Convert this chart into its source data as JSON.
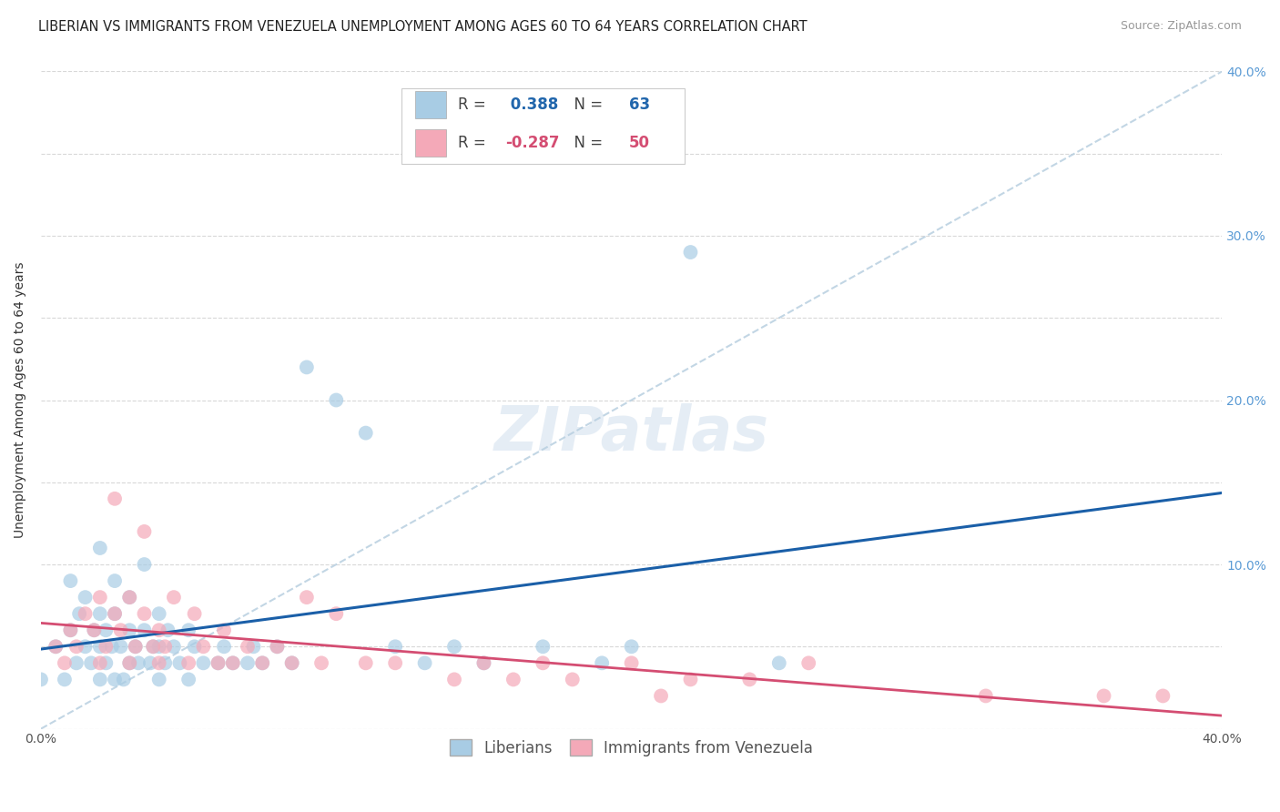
{
  "title": "LIBERIAN VS IMMIGRANTS FROM VENEZUELA UNEMPLOYMENT AMONG AGES 60 TO 64 YEARS CORRELATION CHART",
  "source": "Source: ZipAtlas.com",
  "ylabel": "Unemployment Among Ages 60 to 64 years",
  "xlim": [
    0.0,
    0.4
  ],
  "ylim": [
    0.0,
    0.4
  ],
  "xticks": [
    0.0,
    0.05,
    0.1,
    0.15,
    0.2,
    0.25,
    0.3,
    0.35,
    0.4
  ],
  "yticks": [
    0.0,
    0.05,
    0.1,
    0.15,
    0.2,
    0.25,
    0.3,
    0.35,
    0.4
  ],
  "liberian_color": "#a8cce4",
  "venezuela_color": "#f4a9b8",
  "liberian_R": 0.388,
  "liberian_N": 63,
  "venezuela_R": -0.287,
  "venezuela_N": 50,
  "liberian_line_color": "#1a5fa8",
  "venezuela_line_color": "#d44d72",
  "trend_line_color": "#b8cfe0",
  "background_color": "#ffffff",
  "grid_color": "#d8d8d8",
  "title_fontsize": 10.5,
  "axis_label_fontsize": 10,
  "tick_fontsize": 10,
  "watermark": "ZIPatlas",
  "liberian_scatter_x": [
    0.0,
    0.005,
    0.008,
    0.01,
    0.01,
    0.012,
    0.013,
    0.015,
    0.015,
    0.017,
    0.018,
    0.02,
    0.02,
    0.02,
    0.02,
    0.022,
    0.022,
    0.024,
    0.025,
    0.025,
    0.025,
    0.027,
    0.028,
    0.03,
    0.03,
    0.03,
    0.032,
    0.033,
    0.035,
    0.035,
    0.037,
    0.038,
    0.04,
    0.04,
    0.04,
    0.042,
    0.043,
    0.045,
    0.047,
    0.05,
    0.05,
    0.052,
    0.055,
    0.06,
    0.062,
    0.065,
    0.07,
    0.072,
    0.075,
    0.08,
    0.085,
    0.09,
    0.1,
    0.11,
    0.12,
    0.13,
    0.14,
    0.15,
    0.17,
    0.19,
    0.2,
    0.22,
    0.25
  ],
  "liberian_scatter_y": [
    0.03,
    0.05,
    0.03,
    0.06,
    0.09,
    0.04,
    0.07,
    0.05,
    0.08,
    0.04,
    0.06,
    0.03,
    0.05,
    0.07,
    0.11,
    0.04,
    0.06,
    0.05,
    0.03,
    0.07,
    0.09,
    0.05,
    0.03,
    0.04,
    0.06,
    0.08,
    0.05,
    0.04,
    0.06,
    0.1,
    0.04,
    0.05,
    0.03,
    0.05,
    0.07,
    0.04,
    0.06,
    0.05,
    0.04,
    0.03,
    0.06,
    0.05,
    0.04,
    0.04,
    0.05,
    0.04,
    0.04,
    0.05,
    0.04,
    0.05,
    0.04,
    0.22,
    0.2,
    0.18,
    0.05,
    0.04,
    0.05,
    0.04,
    0.05,
    0.04,
    0.05,
    0.29,
    0.04
  ],
  "venezuela_scatter_x": [
    0.005,
    0.008,
    0.01,
    0.012,
    0.015,
    0.018,
    0.02,
    0.02,
    0.022,
    0.025,
    0.025,
    0.027,
    0.03,
    0.03,
    0.032,
    0.035,
    0.035,
    0.038,
    0.04,
    0.04,
    0.042,
    0.045,
    0.05,
    0.052,
    0.055,
    0.06,
    0.062,
    0.065,
    0.07,
    0.075,
    0.08,
    0.085,
    0.09,
    0.095,
    0.1,
    0.11,
    0.12,
    0.14,
    0.15,
    0.16,
    0.17,
    0.18,
    0.2,
    0.21,
    0.22,
    0.24,
    0.26,
    0.32,
    0.36,
    0.38
  ],
  "venezuela_scatter_y": [
    0.05,
    0.04,
    0.06,
    0.05,
    0.07,
    0.06,
    0.04,
    0.08,
    0.05,
    0.07,
    0.14,
    0.06,
    0.04,
    0.08,
    0.05,
    0.07,
    0.12,
    0.05,
    0.04,
    0.06,
    0.05,
    0.08,
    0.04,
    0.07,
    0.05,
    0.04,
    0.06,
    0.04,
    0.05,
    0.04,
    0.05,
    0.04,
    0.08,
    0.04,
    0.07,
    0.04,
    0.04,
    0.03,
    0.04,
    0.03,
    0.04,
    0.03,
    0.04,
    0.02,
    0.03,
    0.03,
    0.04,
    0.02,
    0.02,
    0.02
  ]
}
